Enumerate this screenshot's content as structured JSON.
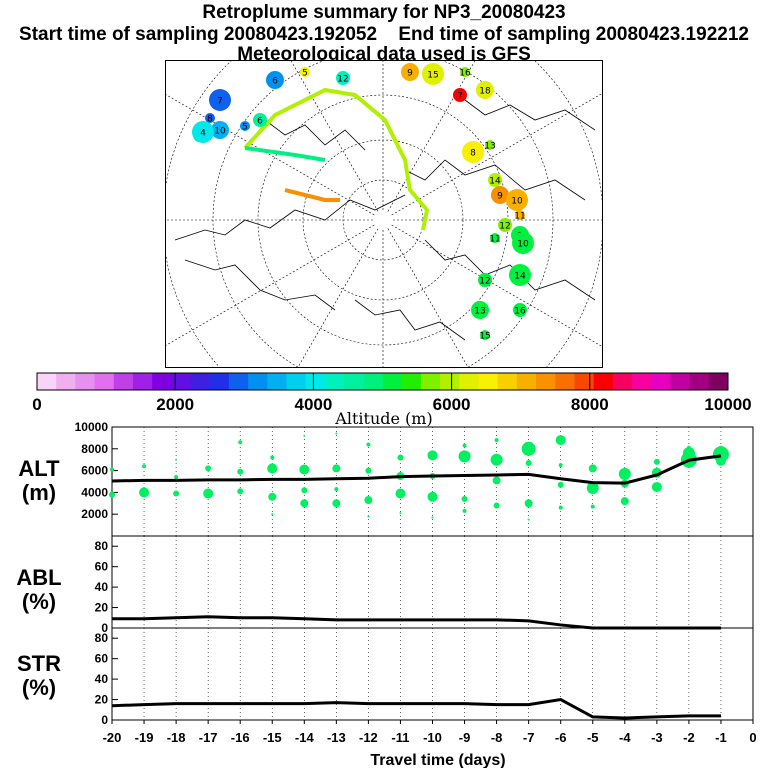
{
  "header": {
    "title": "Retroplume summary for NP3_20080423",
    "start": "Start time of sampling 20080423.192052",
    "end": "End time of sampling 20080423.192212",
    "met": "Meteorological data used is GFS"
  },
  "colorbar": {
    "label": "Altitude (m)",
    "ticks": [
      "0",
      "2000",
      "4000",
      "6000",
      "8000",
      "10000"
    ],
    "range": [
      0,
      10000
    ],
    "colors": [
      "#f8d4f8",
      "#f0b0f0",
      "#e890f0",
      "#e070f0",
      "#c040e8",
      "#a020e8",
      "#8000e0",
      "#6010e0",
      "#4020e0",
      "#2030e8",
      "#1060f0",
      "#0090f0",
      "#00b0f0",
      "#00d0f0",
      "#00e8e8",
      "#00f0c0",
      "#00f0a0",
      "#00f080",
      "#00f040",
      "#20f000",
      "#80f000",
      "#b0f000",
      "#e0f000",
      "#f8f000",
      "#f8d000",
      "#f8b000",
      "#f89000",
      "#f87000",
      "#f84800",
      "#f80000",
      "#f80060",
      "#f800a0",
      "#e800c0",
      "#c000a0",
      "#a00080",
      "#800060"
    ]
  },
  "map_labels": [
    {
      "text": "5",
      "day": 5,
      "alt": 6400
    },
    {
      "text": "12",
      "day": 12,
      "alt": 4200
    },
    {
      "text": "6",
      "day": 6,
      "alt": 3100
    },
    {
      "text": "7",
      "day": 7,
      "alt": 2900
    },
    {
      "text": "8",
      "day": 8,
      "alt": 2800
    },
    {
      "text": "9",
      "day": 9,
      "alt": 3300
    },
    {
      "text": "10",
      "day": 10,
      "alt": 3500
    },
    {
      "text": "4",
      "day": 4,
      "alt": 4000
    },
    {
      "text": "5",
      "day": 5,
      "alt": 3300
    },
    {
      "text": "6",
      "day": 6,
      "alt": 4600
    },
    {
      "text": "9",
      "day": 9,
      "alt": 7200
    },
    {
      "text": "15",
      "day": 15,
      "alt": 6300
    },
    {
      "text": "16",
      "day": 16,
      "alt": 5800
    },
    {
      "text": "7",
      "day": 7,
      "alt": 8200
    },
    {
      "text": "18",
      "day": 18,
      "alt": 6200
    },
    {
      "text": "8",
      "day": 8,
      "alt": 6600
    },
    {
      "text": "13",
      "day": 13,
      "alt": 5700
    },
    {
      "text": "14",
      "day": 14,
      "alt": 5900
    },
    {
      "text": "9",
      "day": 9,
      "alt": 7300
    },
    {
      "text": "10",
      "day": 10,
      "alt": 7100
    },
    {
      "text": "11",
      "day": 11,
      "alt": 7000
    },
    {
      "text": "12",
      "day": 12,
      "alt": 5600
    },
    {
      "text": "9",
      "day": 9,
      "alt": 5200
    },
    {
      "text": "10",
      "day": 10,
      "alt": 5100
    },
    {
      "text": "11",
      "day": 11,
      "alt": 5000
    },
    {
      "text": "12",
      "day": 12,
      "alt": 5000
    },
    {
      "text": "13",
      "day": 13,
      "alt": 5000
    },
    {
      "text": "14",
      "day": 14,
      "alt": 5000
    },
    {
      "text": "15",
      "day": 15,
      "alt": 5000
    },
    {
      "text": "16",
      "day": 16,
      "alt": 5000
    }
  ],
  "chart_data": [
    {
      "type": "line+scatter",
      "panel": "ALT",
      "ylabel": [
        "ALT",
        "(m)"
      ],
      "ylim": [
        0,
        10000
      ],
      "yticks": [
        2000,
        4000,
        6000,
        8000,
        10000
      ],
      "x": [
        -20,
        -19,
        -18,
        -17,
        -16,
        -15,
        -14,
        -13,
        -12,
        -11,
        -10,
        -9,
        -8,
        -7,
        -6,
        -5,
        -4,
        -3,
        -2,
        -1
      ],
      "values": [
        5050,
        5100,
        5100,
        5150,
        5150,
        5200,
        5200,
        5250,
        5300,
        5450,
        5500,
        5550,
        5600,
        5650,
        5250,
        4900,
        4850,
        5600,
        6950,
        7350
      ],
      "scatter": [
        {
          "x": -20,
          "y": 6100,
          "s": 2
        },
        {
          "x": -20,
          "y": 3800,
          "s": 3
        },
        {
          "x": -19,
          "y": 6400,
          "s": 2
        },
        {
          "x": -19,
          "y": 4000,
          "s": 5
        },
        {
          "x": -18,
          "y": 7000,
          "s": 1
        },
        {
          "x": -18,
          "y": 5400,
          "s": 2
        },
        {
          "x": -18,
          "y": 3900,
          "s": 3
        },
        {
          "x": -17,
          "y": 6200,
          "s": 3
        },
        {
          "x": -17,
          "y": 3900,
          "s": 5
        },
        {
          "x": -16,
          "y": 8600,
          "s": 2
        },
        {
          "x": -16,
          "y": 4100,
          "s": 3
        },
        {
          "x": -16,
          "y": 5900,
          "s": 3
        },
        {
          "x": -15,
          "y": 7200,
          "s": 2
        },
        {
          "x": -15,
          "y": 6200,
          "s": 5
        },
        {
          "x": -15,
          "y": 3600,
          "s": 4
        },
        {
          "x": -15,
          "y": 2000,
          "s": 1
        },
        {
          "x": -14,
          "y": 9200,
          "s": 1
        },
        {
          "x": -14,
          "y": 6100,
          "s": 5
        },
        {
          "x": -14,
          "y": 4200,
          "s": 3
        },
        {
          "x": -14,
          "y": 3000,
          "s": 4
        },
        {
          "x": -13,
          "y": 9400,
          "s": 1
        },
        {
          "x": -13,
          "y": 6200,
          "s": 4
        },
        {
          "x": -13,
          "y": 3000,
          "s": 4
        },
        {
          "x": -13,
          "y": 4300,
          "s": 2
        },
        {
          "x": -12,
          "y": 8400,
          "s": 2
        },
        {
          "x": -12,
          "y": 6000,
          "s": 3
        },
        {
          "x": -12,
          "y": 3300,
          "s": 4
        },
        {
          "x": -12,
          "y": 1800,
          "s": 1
        },
        {
          "x": -11,
          "y": 7200,
          "s": 3
        },
        {
          "x": -11,
          "y": 5500,
          "s": 4
        },
        {
          "x": -11,
          "y": 3900,
          "s": 5
        },
        {
          "x": -11,
          "y": 2100,
          "s": 1
        },
        {
          "x": -10,
          "y": 7400,
          "s": 5
        },
        {
          "x": -10,
          "y": 5500,
          "s": 3
        },
        {
          "x": -10,
          "y": 3600,
          "s": 5
        },
        {
          "x": -10,
          "y": 1700,
          "s": 1
        },
        {
          "x": -9,
          "y": 8300,
          "s": 2
        },
        {
          "x": -9,
          "y": 7300,
          "s": 6
        },
        {
          "x": -9,
          "y": 3400,
          "s": 3
        },
        {
          "x": -9,
          "y": 2300,
          "s": 2
        },
        {
          "x": -8,
          "y": 8800,
          "s": 2
        },
        {
          "x": -8,
          "y": 7000,
          "s": 6
        },
        {
          "x": -8,
          "y": 5100,
          "s": 4
        },
        {
          "x": -8,
          "y": 2800,
          "s": 3
        },
        {
          "x": -7,
          "y": 8000,
          "s": 7
        },
        {
          "x": -7,
          "y": 6700,
          "s": 3
        },
        {
          "x": -7,
          "y": 3000,
          "s": 4
        },
        {
          "x": -7,
          "y": 1500,
          "s": 1
        },
        {
          "x": -6,
          "y": 8800,
          "s": 5
        },
        {
          "x": -6,
          "y": 6500,
          "s": 2
        },
        {
          "x": -6,
          "y": 4700,
          "s": 3
        },
        {
          "x": -6,
          "y": 2600,
          "s": 2
        },
        {
          "x": -5,
          "y": 6200,
          "s": 4
        },
        {
          "x": -5,
          "y": 4400,
          "s": 6
        },
        {
          "x": -5,
          "y": 2700,
          "s": 2
        },
        {
          "x": -4,
          "y": 5700,
          "s": 6
        },
        {
          "x": -4,
          "y": 4800,
          "s": 4
        },
        {
          "x": -4,
          "y": 3200,
          "s": 4
        },
        {
          "x": -3,
          "y": 6800,
          "s": 3
        },
        {
          "x": -3,
          "y": 5800,
          "s": 5
        },
        {
          "x": -3,
          "y": 4500,
          "s": 5
        },
        {
          "x": -2,
          "y": 7000,
          "s": 8
        },
        {
          "x": -2,
          "y": 7600,
          "s": 6
        },
        {
          "x": -2,
          "y": 8100,
          "s": 2
        },
        {
          "x": -1,
          "y": 7500,
          "s": 8
        },
        {
          "x": -1,
          "y": 6900,
          "s": 5
        },
        {
          "x": -1,
          "y": 8000,
          "s": 3
        }
      ]
    },
    {
      "type": "line",
      "panel": "ABL",
      "ylabel": [
        "ABL",
        "(%)"
      ],
      "ylim": [
        0,
        90
      ],
      "yticks": [
        0,
        20,
        40,
        60,
        80
      ],
      "x": [
        -20,
        -19,
        -18,
        -17,
        -16,
        -15,
        -14,
        -13,
        -12,
        -11,
        -10,
        -9,
        -8,
        -7,
        -6,
        -5,
        -4,
        -3,
        -2,
        -1
      ],
      "values": [
        9,
        9,
        10,
        11,
        10,
        10,
        9,
        8,
        8,
        8,
        8,
        8,
        8,
        7,
        3,
        0,
        0,
        0,
        0,
        0
      ]
    },
    {
      "type": "line",
      "panel": "STR",
      "ylabel": [
        "STR",
        "(%)"
      ],
      "ylim": [
        0,
        90
      ],
      "yticks": [
        0,
        20,
        40,
        60,
        80
      ],
      "x": [
        -20,
        -19,
        -18,
        -17,
        -16,
        -15,
        -14,
        -13,
        -12,
        -11,
        -10,
        -9,
        -8,
        -7,
        -6,
        -5,
        -4,
        -3,
        -2,
        -1
      ],
      "values": [
        14,
        15,
        16,
        16,
        16,
        16,
        16,
        17,
        16,
        16,
        16,
        16,
        15,
        15,
        20,
        3,
        2,
        3,
        4,
        4
      ]
    }
  ],
  "xaxis": {
    "label": "Travel time (days)",
    "ticks": [
      "-20",
      "-19",
      "-18",
      "-17",
      "-16",
      "-15",
      "-14",
      "-13",
      "-12",
      "-11",
      "-10",
      "-9",
      "-8",
      "-7",
      "-6",
      "-5",
      "-4",
      "-3",
      "-2",
      "-1",
      "0"
    ]
  }
}
